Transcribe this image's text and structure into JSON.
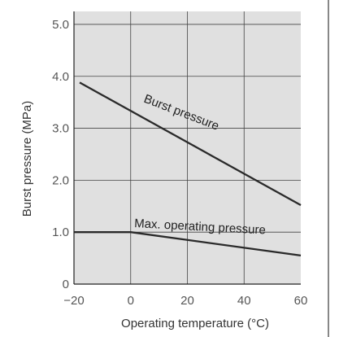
{
  "chart_data": {
    "type": "line",
    "title": "",
    "xlabel": "Operating temperature (°C)",
    "ylabel": "Burst pressure (MPa)",
    "xlim": [
      -20,
      60
    ],
    "ylim": [
      0,
      5.25
    ],
    "x_ticks": [
      "-20",
      "0",
      "20",
      "40",
      "60"
    ],
    "y_ticks": [
      "0",
      "1.0",
      "2.0",
      "3.0",
      "4.0",
      "5.0"
    ],
    "grid": true,
    "series": [
      {
        "name": "Burst pressure",
        "x": [
          -18,
          60
        ],
        "y": [
          3.88,
          1.52
        ]
      },
      {
        "name": "Max. operating pressure",
        "x": [
          -20,
          0,
          60
        ],
        "y": [
          1.0,
          1.0,
          0.55
        ]
      }
    ]
  }
}
